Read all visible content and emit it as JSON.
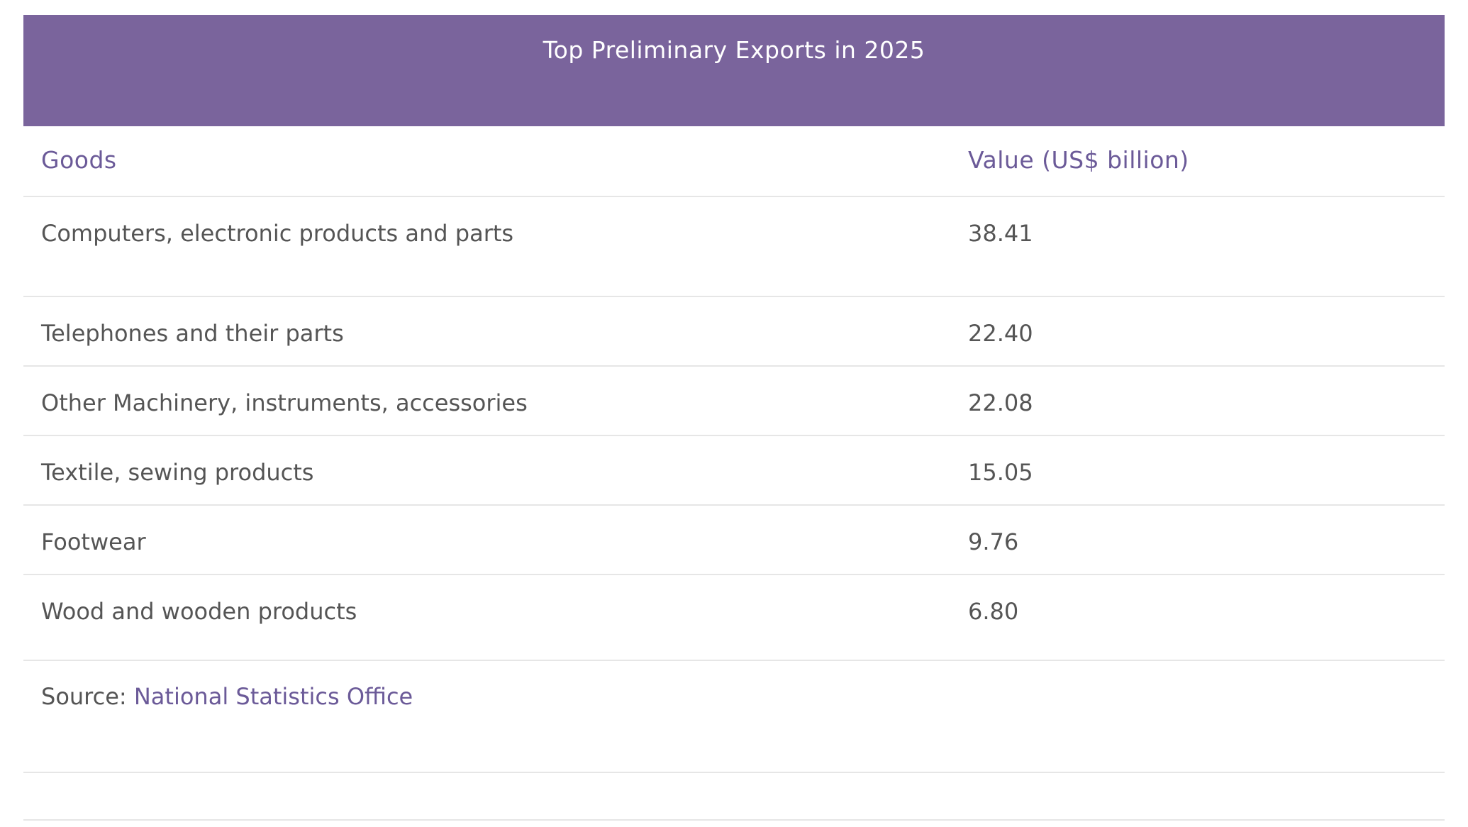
{
  "table": {
    "title": "Top Preliminary Exports in 2025",
    "columns": {
      "goods": "Goods",
      "value": "Value (US$ billion)"
    },
    "rows": [
      {
        "goods": "Computers, electronic products and parts",
        "value": "38.41"
      },
      {
        "goods": "Telephones and their parts",
        "value": "22.40"
      },
      {
        "goods": "Other Machinery, instruments, accessories",
        "value": "22.08"
      },
      {
        "goods": "Textile, sewing products",
        "value": "15.05"
      },
      {
        "goods": "Footwear",
        "value": "9.76"
      },
      {
        "goods": "Wood and wooden products",
        "value": "6.80"
      }
    ],
    "source": {
      "label": "Source: ",
      "link_text": "National Statistics Office"
    }
  },
  "colors": {
    "header_background": "#7a649c",
    "accent_text": "#6b5a98",
    "body_text": "#555555",
    "divider": "#e6e6e6"
  }
}
